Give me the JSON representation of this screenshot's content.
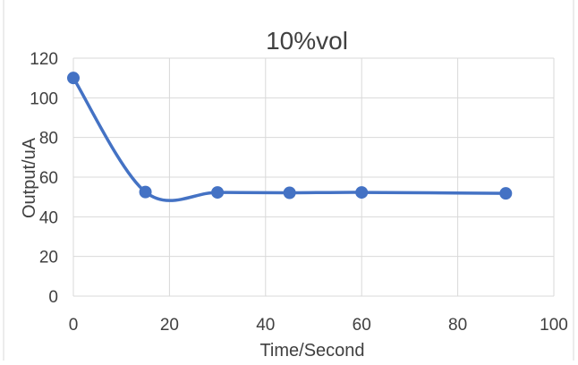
{
  "chart_data": {
    "type": "line",
    "title": "10%vol",
    "xlabel": "Time/Second",
    "ylabel": "Output/uA",
    "xlim": [
      0,
      100
    ],
    "ylim": [
      0,
      120
    ],
    "x_ticks": [
      "0",
      "20",
      "40",
      "60",
      "80",
      "100"
    ],
    "y_ticks": [
      "0",
      "20",
      "40",
      "60",
      "80",
      "100",
      "120"
    ],
    "grid": true,
    "smooth": true,
    "series": [
      {
        "x": [
          0,
          15,
          30,
          45,
          60,
          90
        ],
        "y": [
          110,
          52.5,
          52.3,
          52.1,
          52.3,
          51.8
        ]
      }
    ],
    "colors": {
      "line": "#4472C4",
      "marker": "#4472C4",
      "grid": "#D9D9D9",
      "text": "#404040",
      "title": "#404040"
    }
  }
}
